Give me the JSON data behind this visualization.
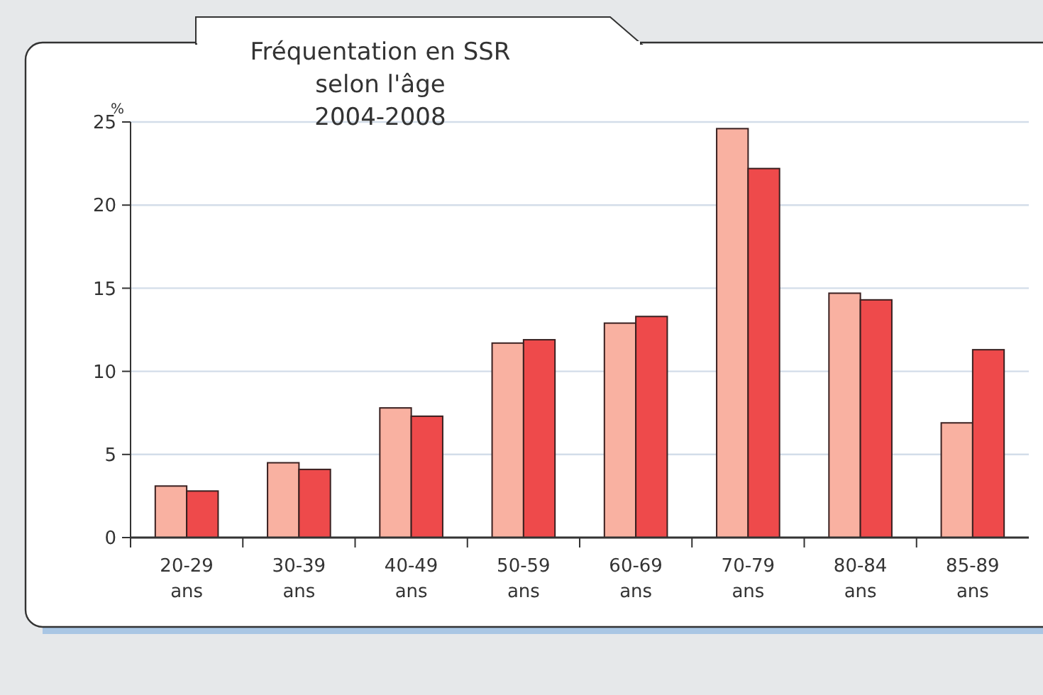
{
  "chart_data": {
    "type": "bar",
    "title": "Fréquentation en SSR\nselon l'âge\n2004-2008",
    "ylabel": "%",
    "categories": [
      "20-29 ans",
      "30-39 ans",
      "40-49 ans",
      "50-59 ans",
      "60-69 ans",
      "70-79 ans",
      "80-84 ans",
      "85-89 ans"
    ],
    "series": [
      {
        "color": "#f9b1a1",
        "values": [
          3.1,
          4.5,
          7.8,
          11.7,
          12.9,
          24.6,
          14.7,
          6.9
        ]
      },
      {
        "color": "#ee4a4b",
        "values": [
          2.8,
          4.1,
          7.3,
          11.9,
          13.3,
          22.2,
          14.3,
          11.3
        ]
      }
    ],
    "ylim": [
      0,
      25
    ],
    "yticks": [
      0,
      5,
      10,
      15,
      20,
      25
    ],
    "grid": "y"
  }
}
